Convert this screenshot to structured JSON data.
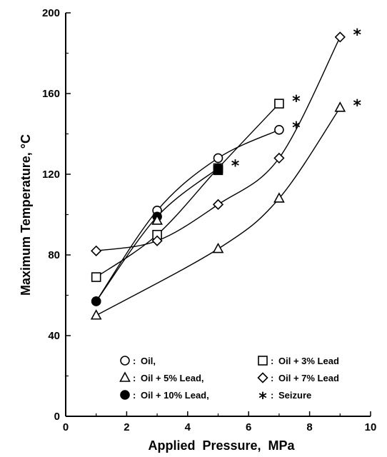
{
  "chart_data": {
    "type": "line",
    "xlabel": "Applied  Pressure,  MPa",
    "ylabel": "Maximum Temperature, °C",
    "xlim": [
      0,
      10
    ],
    "ylim": [
      0,
      200
    ],
    "xticks": [
      "0",
      "2",
      "4",
      "6",
      "8",
      "10"
    ],
    "yticks": [
      "0",
      "40",
      "80",
      "120",
      "160",
      "200"
    ],
    "grid": false,
    "legend_position": "bottom",
    "series": [
      {
        "name": "Oil,",
        "marker": "circle-open",
        "x": [
          1,
          3,
          5,
          7
        ],
        "y": [
          57,
          102,
          128,
          142
        ],
        "seizure": [
          false,
          false,
          false,
          true
        ]
      },
      {
        "name": "Oil + 3% Lead",
        "marker": "square-open",
        "x": [
          1,
          3,
          5,
          7
        ],
        "y": [
          69,
          90,
          123,
          155
        ],
        "seizure": [
          false,
          false,
          false,
          true
        ]
      },
      {
        "name": "Oil + 5% Lead,",
        "marker": "triangle-open",
        "x": [
          1,
          5,
          7,
          9
        ],
        "y": [
          50,
          83,
          108,
          153
        ],
        "seizure": [
          false,
          false,
          false,
          true
        ]
      },
      {
        "name": "Oil + 7% Lead",
        "marker": "diamond-open",
        "x": [
          1,
          3,
          5,
          7,
          9
        ],
        "y": [
          82,
          87,
          105,
          128,
          188
        ],
        "seizure": [
          false,
          false,
          false,
          false,
          true
        ]
      },
      {
        "name": "Oil + 10% Lead,",
        "marker": "circle-filled",
        "x": [
          1,
          3,
          5
        ],
        "y": [
          57,
          99,
          123
        ],
        "seizure": [
          false,
          false,
          true
        ]
      }
    ],
    "extra_points": [
      {
        "marker": "triangle-open",
        "x": 3,
        "y": 97
      },
      {
        "marker": "square-filled",
        "x": 5,
        "y": 122
      }
    ],
    "legend": [
      {
        "marker": "circle-open",
        "label": "Oil,"
      },
      {
        "marker": "square-open",
        "label": "Oil + 3% Lead"
      },
      {
        "marker": "triangle-open",
        "label": "Oil + 5% Lead,"
      },
      {
        "marker": "diamond-open",
        "label": "Oil + 7% Lead"
      },
      {
        "marker": "circle-filled",
        "label": "Oil + 10% Lead,"
      },
      {
        "marker": "star",
        "label": "Seizure"
      }
    ],
    "legend_separator": ":"
  }
}
